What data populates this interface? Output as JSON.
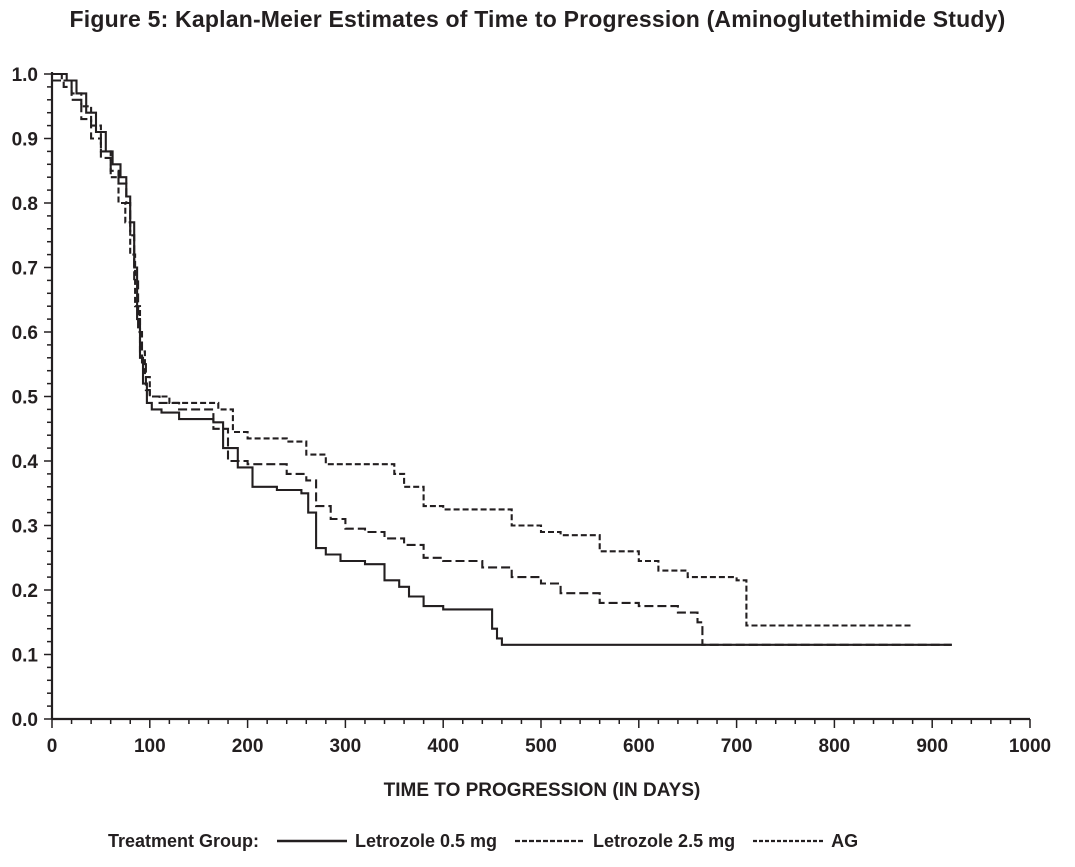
{
  "chart_data": {
    "type": "line",
    "title": "Figure 5: Kaplan-Meier Estimates of Time to Progression (Aminoglutethimide Study)",
    "xlabel": "TIME TO PROGRESSION (IN DAYS)",
    "ylabel": "",
    "xlim": [
      0,
      1000
    ],
    "ylim": [
      0,
      1.0
    ],
    "x_ticks": [
      "0",
      "100",
      "200",
      "300",
      "400",
      "500",
      "600",
      "700",
      "800",
      "900",
      "1000"
    ],
    "y_ticks": [
      "0.0",
      "0.1",
      "0.2",
      "0.3",
      "0.4",
      "0.5",
      "0.6",
      "0.7",
      "0.8",
      "0.9",
      "1.0"
    ],
    "grid": false,
    "legend": {
      "title": "Treatment Group:",
      "placement": "bottom"
    },
    "series": [
      {
        "name": "Letrozole 0.5 mg",
        "style": "solid",
        "x": [
          0,
          15,
          25,
          35,
          45,
          55,
          62,
          70,
          76,
          80,
          84,
          87,
          90,
          93,
          97,
          102,
          112,
          130,
          165,
          175,
          190,
          205,
          230,
          255,
          262,
          270,
          280,
          295,
          320,
          340,
          355,
          365,
          380,
          400,
          435,
          450,
          455,
          460,
          470,
          600,
          660,
          700,
          750,
          800,
          850,
          900,
          920
        ],
        "y": [
          1.0,
          0.99,
          0.97,
          0.94,
          0.91,
          0.88,
          0.86,
          0.84,
          0.81,
          0.77,
          0.7,
          0.62,
          0.56,
          0.52,
          0.49,
          0.48,
          0.475,
          0.465,
          0.46,
          0.42,
          0.39,
          0.36,
          0.355,
          0.35,
          0.32,
          0.265,
          0.255,
          0.245,
          0.24,
          0.215,
          0.205,
          0.19,
          0.175,
          0.17,
          0.17,
          0.14,
          0.125,
          0.115,
          0.115,
          0.115,
          0.115,
          0.115,
          0.115,
          0.115,
          0.115,
          0.115,
          0.115
        ]
      },
      {
        "name": "Letrozole 2.5 mg",
        "style": "dashed",
        "x": [
          0,
          12,
          20,
          30,
          40,
          50,
          60,
          68,
          76,
          80,
          84,
          88,
          92,
          96,
          100,
          110,
          130,
          165,
          180,
          200,
          240,
          260,
          270,
          285,
          300,
          320,
          340,
          360,
          380,
          400,
          440,
          470,
          500,
          520,
          560,
          600,
          640,
          660,
          665,
          700,
          750,
          800,
          850,
          900,
          920
        ],
        "y": [
          0.99,
          0.98,
          0.96,
          0.93,
          0.9,
          0.87,
          0.85,
          0.83,
          0.8,
          0.75,
          0.68,
          0.6,
          0.55,
          0.51,
          0.5,
          0.49,
          0.48,
          0.45,
          0.4,
          0.395,
          0.38,
          0.37,
          0.33,
          0.31,
          0.295,
          0.29,
          0.28,
          0.27,
          0.25,
          0.245,
          0.235,
          0.22,
          0.21,
          0.195,
          0.18,
          0.175,
          0.165,
          0.15,
          0.115,
          0.115,
          0.115,
          0.115,
          0.115,
          0.115,
          0.115
        ]
      },
      {
        "name": "AG",
        "style": "dotted",
        "x": [
          0,
          10,
          20,
          30,
          40,
          50,
          60,
          68,
          75,
          80,
          85,
          90,
          95,
          100,
          120,
          170,
          185,
          200,
          240,
          260,
          280,
          300,
          340,
          350,
          360,
          380,
          400,
          450,
          470,
          500,
          520,
          560,
          600,
          620,
          650,
          700,
          710,
          750,
          800,
          850,
          880
        ],
        "y": [
          1.0,
          0.99,
          0.97,
          0.95,
          0.92,
          0.88,
          0.84,
          0.8,
          0.77,
          0.72,
          0.64,
          0.57,
          0.53,
          0.5,
          0.49,
          0.48,
          0.445,
          0.435,
          0.43,
          0.41,
          0.395,
          0.395,
          0.395,
          0.38,
          0.36,
          0.33,
          0.325,
          0.325,
          0.3,
          0.29,
          0.285,
          0.26,
          0.245,
          0.23,
          0.22,
          0.215,
          0.145,
          0.145,
          0.145,
          0.145,
          0.145
        ]
      }
    ],
    "extra_series_tail": {
      "note_hidden": false
    }
  }
}
